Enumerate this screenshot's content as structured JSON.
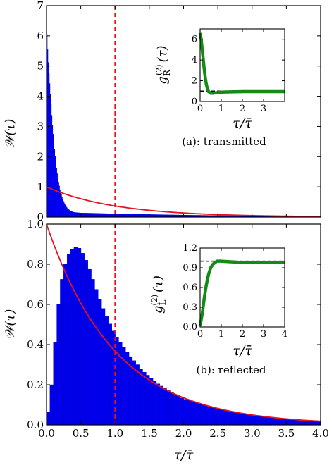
{
  "chart_data": [
    {
      "type": "bar",
      "panel": "top",
      "ylabel": "𝒲(τ)",
      "xlim": [
        0,
        4.0
      ],
      "ylim": [
        0,
        7
      ],
      "yticks": [
        "0",
        "1",
        "2",
        "3",
        "4",
        "5",
        "6",
        "7"
      ],
      "bin_width": 0.01,
      "hist_knots": [
        [
          0.0,
          6.3
        ],
        [
          0.02,
          5.3
        ],
        [
          0.04,
          4.6
        ],
        [
          0.06,
          3.9
        ],
        [
          0.08,
          3.2
        ],
        [
          0.1,
          2.6
        ],
        [
          0.13,
          1.9
        ],
        [
          0.16,
          1.35
        ],
        [
          0.2,
          0.85
        ],
        [
          0.25,
          0.5
        ],
        [
          0.3,
          0.3
        ],
        [
          0.35,
          0.2
        ],
        [
          0.4,
          0.16
        ],
        [
          0.5,
          0.14
        ],
        [
          0.7,
          0.13
        ],
        [
          1.0,
          0.11
        ],
        [
          1.5,
          0.09
        ],
        [
          2.0,
          0.07
        ],
        [
          2.5,
          0.055
        ],
        [
          3.0,
          0.045
        ],
        [
          3.5,
          0.035
        ],
        [
          4.0,
          0.03
        ]
      ],
      "reference_curve": {
        "function": "exp(-tau)",
        "color": "#e8121e"
      },
      "vline_x": 1.0,
      "annotation": "(a):  transmitted",
      "inset": {
        "type": "line",
        "ylabel": "g_R^(2)(τ)",
        "xlabel": "τ/τ̄",
        "xlim": [
          0,
          4
        ],
        "ylim": [
          0,
          7
        ],
        "xticks": [
          "0",
          "1",
          "2",
          "3"
        ],
        "yticks": [
          "0",
          "2",
          "4",
          "6"
        ],
        "curve_points": [
          [
            0.0,
            6.6
          ],
          [
            0.05,
            6.0
          ],
          [
            0.1,
            5.0
          ],
          [
            0.15,
            4.0
          ],
          [
            0.2,
            3.0
          ],
          [
            0.25,
            2.2
          ],
          [
            0.3,
            1.6
          ],
          [
            0.35,
            1.2
          ],
          [
            0.4,
            0.95
          ],
          [
            0.5,
            0.8
          ],
          [
            0.6,
            0.8
          ],
          [
            0.8,
            0.85
          ],
          [
            1.0,
            0.9
          ],
          [
            1.5,
            0.93
          ],
          [
            2.0,
            0.95
          ],
          [
            3.0,
            0.95
          ],
          [
            4.0,
            0.95
          ]
        ],
        "reference_y": 1.0
      }
    },
    {
      "type": "bar",
      "panel": "bottom",
      "ylabel": "𝒲(τ)",
      "xlabel": "τ/τ̄",
      "xlim": [
        0,
        4.0
      ],
      "ylim": [
        0,
        1.0
      ],
      "xticks": [
        "0.0",
        "0.5",
        "1.0",
        "1.5",
        "2.0",
        "2.5",
        "3.0",
        "3.5",
        "4.0"
      ],
      "yticks": [
        "0.0",
        "0.2",
        "0.4",
        "0.6",
        "0.8",
        "1.0"
      ],
      "bin_width": 0.05,
      "hist_knots": [
        [
          0.0,
          0.03
        ],
        [
          0.05,
          0.1
        ],
        [
          0.1,
          0.3
        ],
        [
          0.15,
          0.52
        ],
        [
          0.2,
          0.68
        ],
        [
          0.25,
          0.77
        ],
        [
          0.3,
          0.83
        ],
        [
          0.35,
          0.87
        ],
        [
          0.4,
          0.88
        ],
        [
          0.45,
          0.89
        ],
        [
          0.5,
          0.87
        ],
        [
          0.55,
          0.84
        ],
        [
          0.6,
          0.8
        ],
        [
          0.7,
          0.7
        ],
        [
          0.8,
          0.6
        ],
        [
          0.9,
          0.52
        ],
        [
          1.0,
          0.45
        ],
        [
          1.2,
          0.35
        ],
        [
          1.4,
          0.27
        ],
        [
          1.6,
          0.21
        ],
        [
          1.8,
          0.165
        ],
        [
          2.0,
          0.13
        ],
        [
          2.5,
          0.08
        ],
        [
          3.0,
          0.05
        ],
        [
          3.5,
          0.03
        ],
        [
          4.0,
          0.02
        ]
      ],
      "reference_curve": {
        "function": "exp(-tau)",
        "color": "#e8121e"
      },
      "vline_x": 1.0,
      "annotation": "(b):  reflected",
      "inset": {
        "type": "line",
        "ylabel": "g_L^(2)(τ)",
        "xlabel": "τ/τ̄",
        "xlim": [
          0,
          4
        ],
        "ylim": [
          0,
          1.2
        ],
        "xticks": [
          "0",
          "1",
          "2",
          "3",
          "4"
        ],
        "yticks": [
          "0.0",
          "0.3",
          "0.6",
          "0.9",
          "1.2"
        ],
        "curve_points": [
          [
            0.0,
            0.02
          ],
          [
            0.1,
            0.2
          ],
          [
            0.2,
            0.45
          ],
          [
            0.3,
            0.65
          ],
          [
            0.4,
            0.8
          ],
          [
            0.5,
            0.9
          ],
          [
            0.6,
            0.95
          ],
          [
            0.7,
            0.98
          ],
          [
            0.8,
            1.0
          ],
          [
            0.9,
            1.0
          ],
          [
            1.0,
            1.0
          ],
          [
            1.5,
            0.99
          ],
          [
            2.0,
            0.98
          ],
          [
            3.0,
            0.98
          ],
          [
            4.0,
            0.98
          ]
        ],
        "reference_y": 1.0
      }
    }
  ],
  "colors": {
    "histogram": "#0000ee",
    "exponential": "#e8121e",
    "inset_curve": "#148c14"
  }
}
